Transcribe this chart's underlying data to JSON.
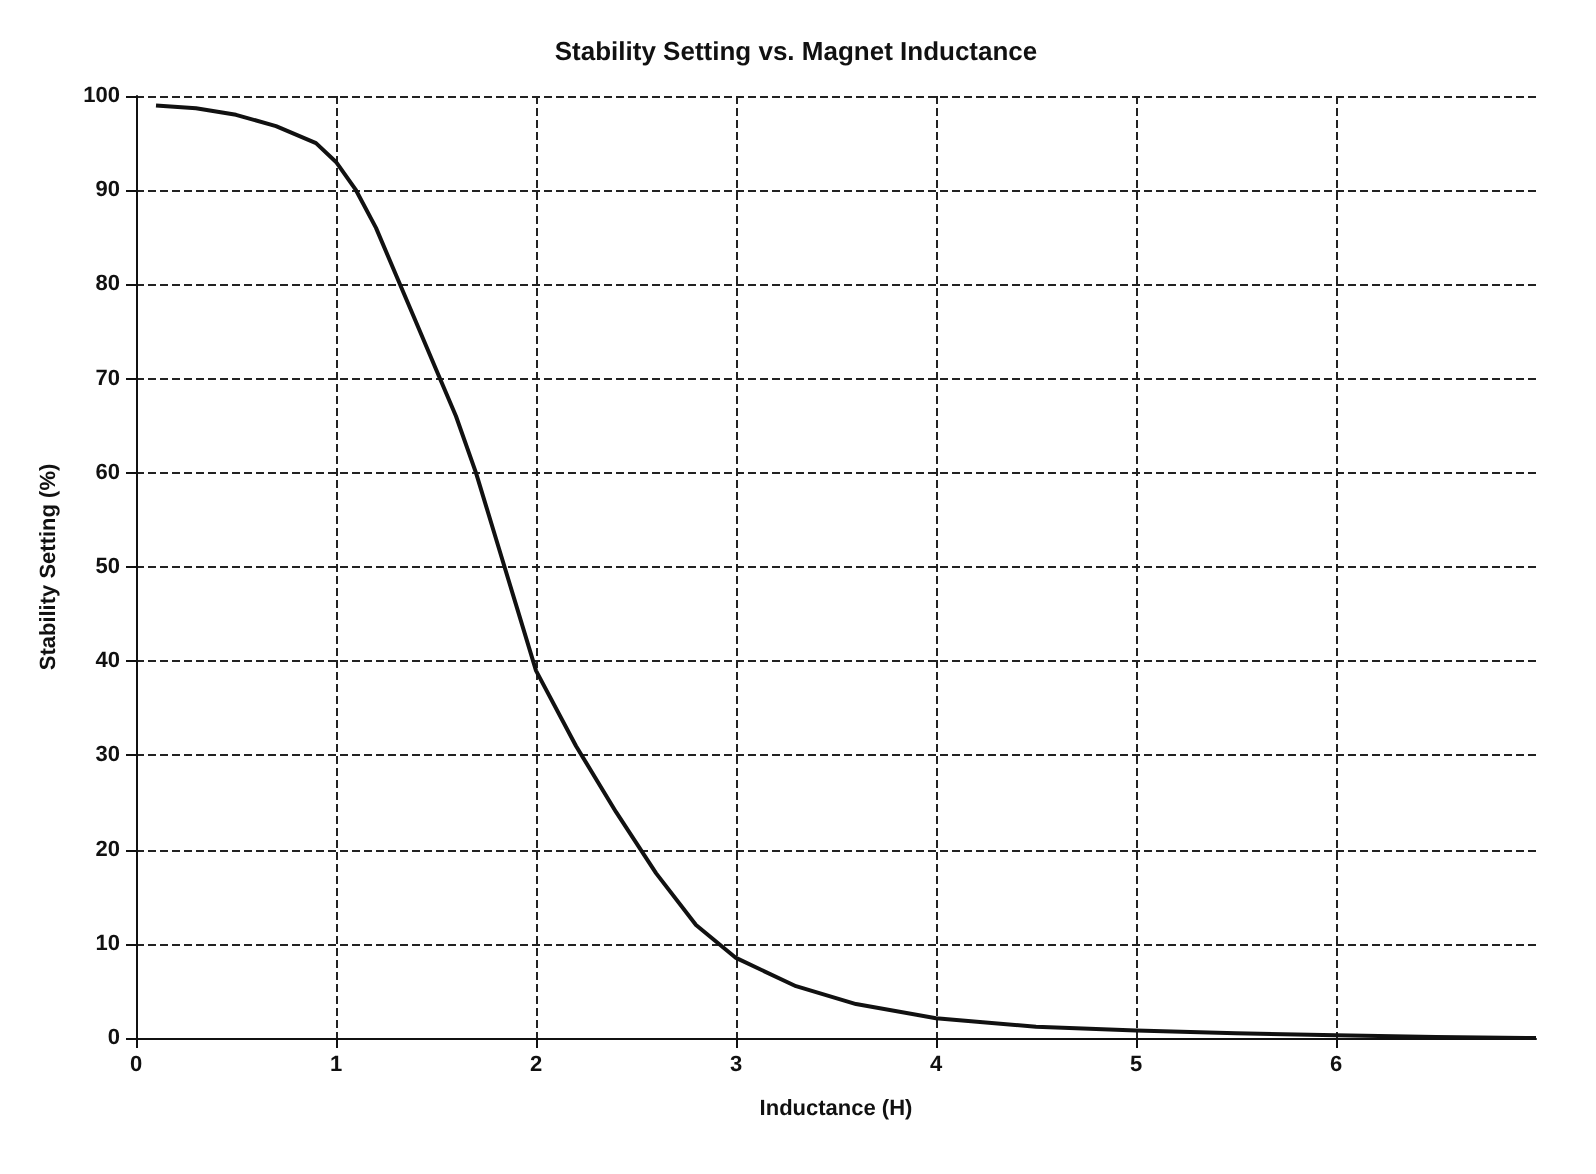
{
  "chart_data": {
    "type": "line",
    "title": "Stability Setting vs. Magnet Inductance",
    "xlabel": "Inductance (H)",
    "ylabel": "Stability Setting (%)",
    "x": [
      0.1,
      0.3,
      0.5,
      0.7,
      0.9,
      1.0,
      1.1,
      1.2,
      1.3,
      1.4,
      1.5,
      1.6,
      1.7,
      1.8,
      1.9,
      2.0,
      2.2,
      2.4,
      2.6,
      2.8,
      3.0,
      3.3,
      3.6,
      4.0,
      4.5,
      5.0,
      5.5,
      6.0,
      6.5,
      7.0
    ],
    "series": [
      {
        "color": "#111111",
        "values": [
          99,
          98.7,
          98,
          96.8,
          95,
          93,
          90,
          86,
          81,
          76,
          71,
          66,
          60,
          53,
          46,
          39,
          31,
          24,
          17.5,
          12,
          8.5,
          5.5,
          3.6,
          2.1,
          1.2,
          0.8,
          0.5,
          0.3,
          0.1,
          0
        ]
      }
    ],
    "xlim": [
      0,
      7
    ],
    "ylim": [
      0,
      100
    ],
    "xticks": [
      0,
      1,
      2,
      3,
      4,
      5,
      6
    ],
    "yticks": [
      0,
      10,
      20,
      30,
      40,
      50,
      60,
      70,
      80,
      90,
      100
    ],
    "grid": true,
    "marker": "none",
    "line_style": "solid"
  }
}
